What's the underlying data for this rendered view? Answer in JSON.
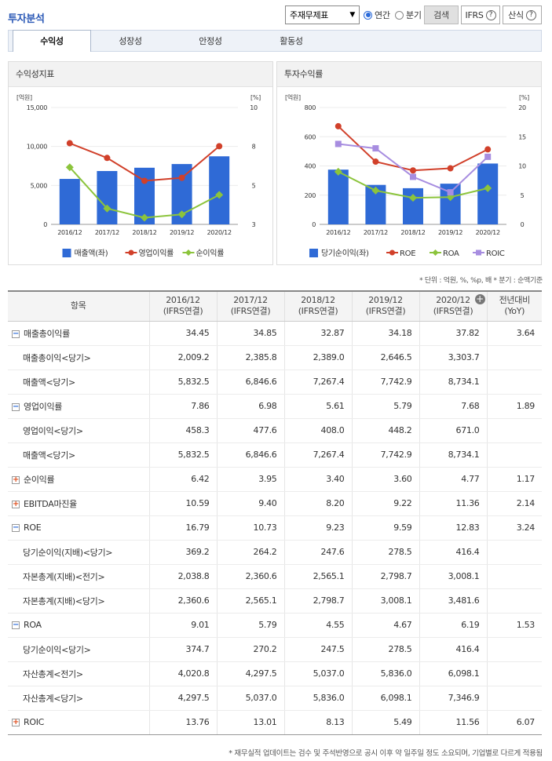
{
  "header": {
    "title": "투자분석",
    "select_value": "주재무제표",
    "radio_annual": "연간",
    "radio_quarter": "분기",
    "search_btn": "검색",
    "ifrs_btn": "IFRS",
    "ifrs_q": "?",
    "formula_btn": "산식",
    "formula_q": "?"
  },
  "tabs": [
    "수익성",
    "성장성",
    "안정성",
    "활동성"
  ],
  "panels": {
    "left_title": "수익성지표",
    "right_title": "투자수익률"
  },
  "units": "* 단위 : 억원, %, %p, 배   * 분기 : 순액기준",
  "footnote": "* 재무실적 업데이트는 검수 및 주석반영으로 공시 이후 약 일주일 정도 소요되며, 기업별로 다르게 적용됨",
  "colors": {
    "bar": "#2f6ad6",
    "red": "#d1402a",
    "green": "#8cc43c",
    "purple": "#a78de0"
  },
  "chart_data": [
    {
      "type": "bar",
      "title": "수익성지표",
      "categories": [
        "2016/12",
        "2017/12",
        "2018/12",
        "2019/12",
        "2020/12"
      ],
      "left_unit": "[억원]",
      "right_unit": "[%]",
      "ylim_left": [
        0,
        15000
      ],
      "ylim_right": [
        3,
        10
      ],
      "left_ticks": [
        "15,000",
        "10,000",
        "5,000",
        "0"
      ],
      "right_ticks": [
        "10",
        "8",
        "5",
        "3"
      ],
      "series": [
        {
          "name": "매출액(좌)",
          "kind": "bar",
          "values": [
            5832.5,
            6846.6,
            7267.4,
            7742.9,
            8734.1
          ]
        },
        {
          "name": "영업이익률",
          "kind": "line",
          "values": [
            7.86,
            6.98,
            5.61,
            5.79,
            7.68
          ]
        },
        {
          "name": "순이익률",
          "kind": "line",
          "values": [
            6.42,
            3.95,
            3.4,
            3.6,
            4.77
          ]
        }
      ]
    },
    {
      "type": "bar",
      "title": "투자수익률",
      "categories": [
        "2016/12",
        "2017/12",
        "2018/12",
        "2019/12",
        "2020/12"
      ],
      "left_unit": "[억원]",
      "right_unit": "[%]",
      "ylim_left": [
        0,
        800
      ],
      "ylim_right": [
        0,
        20
      ],
      "left_ticks": [
        "800",
        "600",
        "400",
        "200",
        "0"
      ],
      "right_ticks": [
        "20",
        "15",
        "10",
        "5",
        "0"
      ],
      "series": [
        {
          "name": "당기순이익(좌)",
          "kind": "bar",
          "values": [
            374.7,
            270.2,
            247.5,
            278.5,
            416.4
          ]
        },
        {
          "name": "ROE",
          "kind": "line",
          "values": [
            16.79,
            10.73,
            9.23,
            9.59,
            12.83
          ]
        },
        {
          "name": "ROA",
          "kind": "line",
          "values": [
            9.01,
            5.79,
            4.55,
            4.67,
            6.19
          ]
        },
        {
          "name": "ROIC",
          "kind": "line",
          "values": [
            13.76,
            13.01,
            8.13,
            5.49,
            11.56
          ]
        }
      ]
    }
  ],
  "table": {
    "headers": [
      "항목",
      "2016/12\n(IFRS연결)",
      "2017/12\n(IFRS연결)",
      "2018/12\n(IFRS연결)",
      "2019/12\n(IFRS연결)",
      "2020/12\n(IFRS연결)",
      "전년대비\n(YoY)"
    ],
    "plus_icon": "+",
    "rows": [
      {
        "icon": "minus",
        "label": "매출총이익률",
        "values": [
          "34.45",
          "34.85",
          "32.87",
          "34.18",
          "37.82",
          "3.64"
        ]
      },
      {
        "icon": "",
        "label": "매출총이익<당기>",
        "values": [
          "2,009.2",
          "2,385.8",
          "2,389.0",
          "2,646.5",
          "3,303.7",
          ""
        ]
      },
      {
        "icon": "",
        "label": "매출액<당기>",
        "values": [
          "5,832.5",
          "6,846.6",
          "7,267.4",
          "7,742.9",
          "8,734.1",
          ""
        ]
      },
      {
        "icon": "minus",
        "label": "영업이익률",
        "values": [
          "7.86",
          "6.98",
          "5.61",
          "5.79",
          "7.68",
          "1.89"
        ]
      },
      {
        "icon": "",
        "label": "영업이익<당기>",
        "values": [
          "458.3",
          "477.6",
          "408.0",
          "448.2",
          "671.0",
          ""
        ]
      },
      {
        "icon": "",
        "label": "매출액<당기>",
        "values": [
          "5,832.5",
          "6,846.6",
          "7,267.4",
          "7,742.9",
          "8,734.1",
          ""
        ]
      },
      {
        "icon": "plus",
        "label": "순이익률",
        "values": [
          "6.42",
          "3.95",
          "3.40",
          "3.60",
          "4.77",
          "1.17"
        ]
      },
      {
        "icon": "plus",
        "label": "EBITDA마진율",
        "values": [
          "10.59",
          "9.40",
          "8.20",
          "9.22",
          "11.36",
          "2.14"
        ]
      },
      {
        "icon": "minus",
        "label": "ROE",
        "values": [
          "16.79",
          "10.73",
          "9.23",
          "9.59",
          "12.83",
          "3.24"
        ]
      },
      {
        "icon": "",
        "label": "당기순이익(지배)<당기>",
        "values": [
          "369.2",
          "264.2",
          "247.6",
          "278.5",
          "416.4",
          ""
        ]
      },
      {
        "icon": "",
        "label": "자본총계(지배)<전기>",
        "values": [
          "2,038.8",
          "2,360.6",
          "2,565.1",
          "2,798.7",
          "3,008.1",
          ""
        ]
      },
      {
        "icon": "",
        "label": "자본총계(지배)<당기>",
        "values": [
          "2,360.6",
          "2,565.1",
          "2,798.7",
          "3,008.1",
          "3,481.6",
          ""
        ]
      },
      {
        "icon": "minus",
        "label": "ROA",
        "values": [
          "9.01",
          "5.79",
          "4.55",
          "4.67",
          "6.19",
          "1.53"
        ]
      },
      {
        "icon": "",
        "label": "당기순이익<당기>",
        "values": [
          "374.7",
          "270.2",
          "247.5",
          "278.5",
          "416.4",
          ""
        ]
      },
      {
        "icon": "",
        "label": "자산총계<전기>",
        "values": [
          "4,020.8",
          "4,297.5",
          "5,037.0",
          "5,836.0",
          "6,098.1",
          ""
        ]
      },
      {
        "icon": "",
        "label": "자산총계<당기>",
        "values": [
          "4,297.5",
          "5,037.0",
          "5,836.0",
          "6,098.1",
          "7,346.9",
          ""
        ]
      },
      {
        "icon": "plus",
        "label": "ROIC",
        "values": [
          "13.76",
          "13.01",
          "8.13",
          "5.49",
          "11.56",
          "6.07"
        ]
      }
    ]
  }
}
